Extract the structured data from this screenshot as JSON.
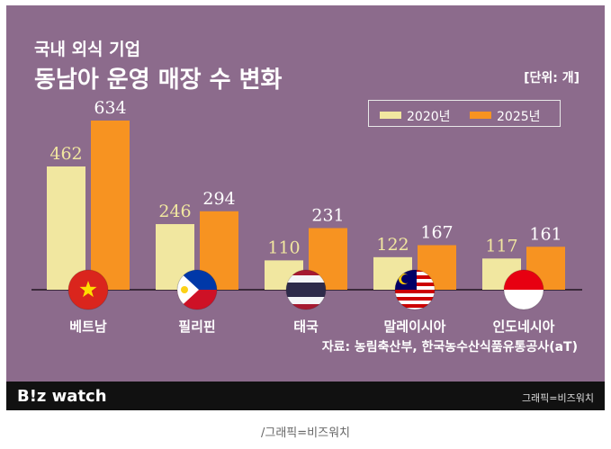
{
  "header": {
    "line1": "국내 외식 기업",
    "line2": "동남아 운영 매장 수 변화",
    "unit": "[단위: 개]"
  },
  "legend": {
    "items": [
      {
        "label": "2020년",
        "color": "#f1e7a0"
      },
      {
        "label": "2025년",
        "color": "#f79321"
      }
    ]
  },
  "chart_data": {
    "type": "bar",
    "categories": [
      "베트남",
      "필리핀",
      "태국",
      "말레이시아",
      "인도네시아"
    ],
    "series": [
      {
        "name": "2020년",
        "values": [
          462,
          246,
          110,
          122,
          117
        ],
        "color": "#f1e7a0"
      },
      {
        "name": "2025년",
        "values": [
          634,
          294,
          231,
          167,
          161
        ],
        "color": "#f79321"
      }
    ],
    "ylim": [
      0,
      634
    ],
    "grid": false,
    "legend_position": "top-right",
    "flags": [
      "vietnam-flag",
      "philippines-flag",
      "thailand-flag",
      "malaysia-flag",
      "indonesia-flag"
    ]
  },
  "source": "자료: 농림축산부, 한국농수산식품유통공사(aT)",
  "footer": {
    "brand": "B!z watch",
    "credit": "그래픽=비즈워치"
  },
  "caption": "/그래픽=비즈워치",
  "colors": {
    "background": "#8c6b8c",
    "footer": "#111111",
    "value_2020": "#f1e7a0",
    "value_2025": "#ffffff"
  }
}
